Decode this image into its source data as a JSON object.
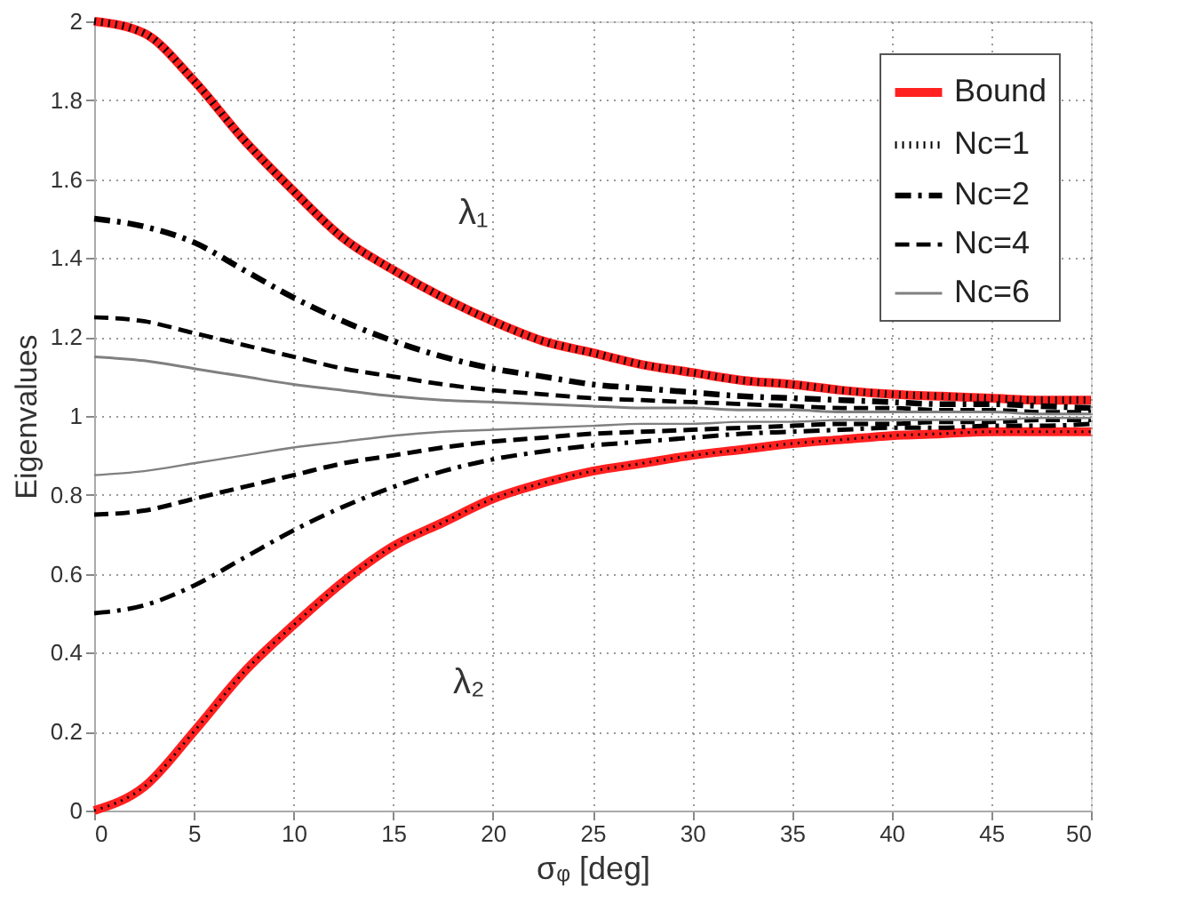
{
  "chart_data": {
    "type": "line",
    "xlabel": "σᵩ  [deg]",
    "ylabel": "Eigenvalues",
    "x": [
      0,
      2.5,
      5,
      7.5,
      10,
      12.5,
      15,
      17.5,
      20,
      22.5,
      25,
      27.5,
      30,
      32.5,
      35,
      37.5,
      40,
      42.5,
      45,
      47.5,
      50
    ],
    "xlim": [
      0,
      50
    ],
    "xticks": [
      0,
      5,
      10,
      15,
      20,
      25,
      30,
      35,
      40,
      45,
      50
    ],
    "ylim": [
      0,
      2
    ],
    "yticks": [
      0,
      0.2,
      0.4,
      0.6,
      0.8,
      1,
      1.2,
      1.4,
      1.6,
      1.8,
      2
    ],
    "grid": true,
    "legend": "top right",
    "marker": "none",
    "annotations": [
      "λ₁",
      "λ₂"
    ],
    "series": [
      {
        "name": "Bound",
        "color": "#ff2020",
        "line_style": "solid",
        "values": [
          2,
          1.97,
          1.85,
          1.7,
          1.57,
          1.45,
          1.37,
          1.3,
          1.24,
          1.19,
          1.16,
          1.13,
          1.11,
          1.09,
          1.08,
          1.065,
          1.055,
          1.05,
          1.045,
          1.04,
          1.04
        ]
      },
      {
        "name": "Nc=1",
        "color": "#000000",
        "line_style": "dotted",
        "values": [
          2,
          1.97,
          1.85,
          1.7,
          1.57,
          1.45,
          1.37,
          1.3,
          1.24,
          1.19,
          1.16,
          1.13,
          1.11,
          1.09,
          1.08,
          1.065,
          1.055,
          1.05,
          1.045,
          1.04,
          1.04
        ]
      },
      {
        "name": "Nc=2",
        "color": "#000000",
        "line_style": "dashdot",
        "values": [
          1.5,
          1.48,
          1.44,
          1.37,
          1.3,
          1.24,
          1.19,
          1.15,
          1.12,
          1.1,
          1.08,
          1.07,
          1.06,
          1.05,
          1.045,
          1.04,
          1.035,
          1.03,
          1.03,
          1.025,
          1.02
        ]
      },
      {
        "name": "Nc=4",
        "color": "#000000",
        "line_style": "dashed",
        "values": [
          1.25,
          1.24,
          1.21,
          1.18,
          1.15,
          1.12,
          1.1,
          1.08,
          1.065,
          1.055,
          1.045,
          1.04,
          1.035,
          1.03,
          1.025,
          1.02,
          1.02,
          1.015,
          1.015,
          1.01,
          1.01
        ]
      },
      {
        "name": "Nc=6",
        "color": "#808080",
        "line_style": "solid",
        "values": [
          1.15,
          1.14,
          1.12,
          1.1,
          1.08,
          1.065,
          1.05,
          1.04,
          1.035,
          1.03,
          1.025,
          1.02,
          1.02,
          1.015,
          1.015,
          1.01,
          1.01,
          1.01,
          1.01,
          1.005,
          1.005
        ]
      },
      {
        "color": "#ff2020",
        "line_style": "solid",
        "values": [
          0,
          0.06,
          0.2,
          0.35,
          0.47,
          0.58,
          0.67,
          0.73,
          0.79,
          0.83,
          0.86,
          0.88,
          0.9,
          0.915,
          0.93,
          0.94,
          0.95,
          0.955,
          0.96,
          0.96,
          0.96
        ]
      },
      {
        "color": "#000000",
        "line_style": "dotted",
        "values": [
          0,
          0.06,
          0.2,
          0.35,
          0.47,
          0.58,
          0.67,
          0.73,
          0.79,
          0.83,
          0.86,
          0.88,
          0.9,
          0.915,
          0.93,
          0.94,
          0.95,
          0.955,
          0.96,
          0.96,
          0.96
        ]
      },
      {
        "color": "#000000",
        "line_style": "dashdot",
        "values": [
          0.5,
          0.52,
          0.57,
          0.64,
          0.71,
          0.77,
          0.82,
          0.86,
          0.89,
          0.91,
          0.925,
          0.935,
          0.945,
          0.955,
          0.96,
          0.965,
          0.97,
          0.97,
          0.975,
          0.975,
          0.98
        ]
      },
      {
        "color": "#000000",
        "line_style": "dashed",
        "values": [
          0.75,
          0.76,
          0.79,
          0.82,
          0.85,
          0.88,
          0.9,
          0.92,
          0.935,
          0.945,
          0.955,
          0.96,
          0.965,
          0.97,
          0.975,
          0.98,
          0.98,
          0.985,
          0.985,
          0.99,
          0.99
        ]
      },
      {
        "color": "#808080",
        "line_style": "solid",
        "values": [
          0.85,
          0.86,
          0.88,
          0.9,
          0.92,
          0.935,
          0.95,
          0.96,
          0.965,
          0.97,
          0.975,
          0.98,
          0.98,
          0.985,
          0.985,
          0.99,
          0.99,
          0.99,
          0.99,
          0.995,
          0.995
        ]
      }
    ]
  }
}
